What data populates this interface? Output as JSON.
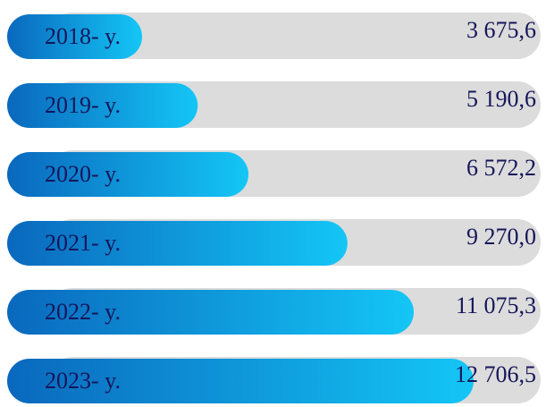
{
  "chart_data": {
    "type": "bar",
    "orientation": "horizontal",
    "categories": [
      "2018- y.",
      "2019- y.",
      "2020- y.",
      "2021- y.",
      "2022- y.",
      "2023- y."
    ],
    "values": [
      3675.6,
      5190.6,
      6572.2,
      9270.0,
      11075.3,
      12706.5
    ],
    "value_labels": [
      "3 675,6",
      "5 190,6",
      "6 572,2",
      "9 270,0",
      "11 075,3",
      "12 706,5"
    ],
    "colors": [
      "#0a68bd",
      "#14c6f6"
    ],
    "track_color": "#dcdcdc"
  }
}
